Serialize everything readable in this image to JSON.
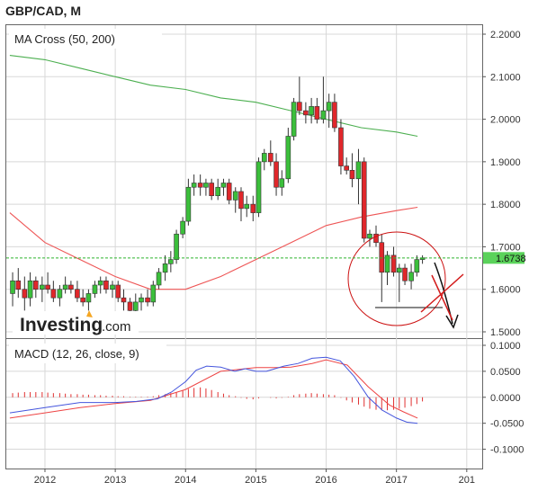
{
  "header": {
    "title": "GBP/CAD, M"
  },
  "logo": {
    "brand": "Investing",
    "suffix": ".com"
  },
  "colors": {
    "up": "#3bbf3b",
    "down": "#e0272b",
    "ma50": "#ee5555",
    "ma200": "#4caf50",
    "price_line": "#2db52d",
    "price_tag_bg": "#5ad25a",
    "macd": "#4455dd",
    "signal": "#ee4444",
    "hist": "#e03030",
    "annotation": "#cc1111",
    "grid": "#d8d8d8",
    "axis": "#555555"
  },
  "chart_data": [
    {
      "type": "candlestick",
      "panel": "main",
      "indicator_label": "MA Cross (50, 200)",
      "x_ticks": [
        "2012",
        "2013",
        "2014",
        "2015",
        "2016",
        "2017",
        "201"
      ],
      "y_ticks": [
        "2.2000",
        "2.1000",
        "2.0000",
        "1.9000",
        "1.8000",
        "1.7000",
        "1.6000",
        "1.5000"
      ],
      "ylim": [
        1.5,
        2.2
      ],
      "current_price": "1.6738",
      "ohlc": [
        [
          2011.54,
          1.59,
          1.64,
          1.56,
          1.62
        ],
        [
          2011.62,
          1.62,
          1.65,
          1.58,
          1.6
        ],
        [
          2011.71,
          1.6,
          1.63,
          1.55,
          1.58
        ],
        [
          2011.79,
          1.58,
          1.64,
          1.56,
          1.62
        ],
        [
          2011.87,
          1.62,
          1.63,
          1.58,
          1.6
        ],
        [
          2011.96,
          1.6,
          1.63,
          1.57,
          1.61
        ],
        [
          2012.04,
          1.61,
          1.64,
          1.59,
          1.6
        ],
        [
          2012.12,
          1.6,
          1.62,
          1.57,
          1.58
        ],
        [
          2012.21,
          1.58,
          1.61,
          1.56,
          1.6
        ],
        [
          2012.29,
          1.6,
          1.63,
          1.59,
          1.61
        ],
        [
          2012.37,
          1.61,
          1.62,
          1.59,
          1.6
        ],
        [
          2012.46,
          1.6,
          1.62,
          1.57,
          1.58
        ],
        [
          2012.54,
          1.58,
          1.6,
          1.56,
          1.57
        ],
        [
          2012.62,
          1.57,
          1.6,
          1.55,
          1.59
        ],
        [
          2012.71,
          1.59,
          1.62,
          1.58,
          1.61
        ],
        [
          2012.79,
          1.61,
          1.63,
          1.59,
          1.62
        ],
        [
          2012.87,
          1.62,
          1.63,
          1.59,
          1.6
        ],
        [
          2012.96,
          1.6,
          1.62,
          1.58,
          1.61
        ],
        [
          2013.04,
          1.61,
          1.62,
          1.57,
          1.58
        ],
        [
          2013.12,
          1.58,
          1.6,
          1.55,
          1.57
        ],
        [
          2013.21,
          1.57,
          1.58,
          1.53,
          1.55
        ],
        [
          2013.29,
          1.55,
          1.59,
          1.53,
          1.57
        ],
        [
          2013.37,
          1.57,
          1.59,
          1.55,
          1.58
        ],
        [
          2013.46,
          1.58,
          1.6,
          1.56,
          1.57
        ],
        [
          2013.54,
          1.57,
          1.62,
          1.56,
          1.61
        ],
        [
          2013.62,
          1.61,
          1.65,
          1.6,
          1.64
        ],
        [
          2013.71,
          1.64,
          1.68,
          1.62,
          1.66
        ],
        [
          2013.79,
          1.66,
          1.69,
          1.64,
          1.67
        ],
        [
          2013.87,
          1.67,
          1.74,
          1.66,
          1.73
        ],
        [
          2013.96,
          1.73,
          1.77,
          1.72,
          1.76
        ],
        [
          2014.04,
          1.76,
          1.86,
          1.75,
          1.84
        ],
        [
          2014.12,
          1.84,
          1.87,
          1.82,
          1.85
        ],
        [
          2014.21,
          1.85,
          1.87,
          1.82,
          1.84
        ],
        [
          2014.29,
          1.84,
          1.86,
          1.82,
          1.85
        ],
        [
          2014.37,
          1.85,
          1.86,
          1.81,
          1.82
        ],
        [
          2014.46,
          1.82,
          1.86,
          1.81,
          1.84
        ],
        [
          2014.54,
          1.84,
          1.86,
          1.82,
          1.85
        ],
        [
          2014.62,
          1.85,
          1.86,
          1.8,
          1.81
        ],
        [
          2014.71,
          1.81,
          1.84,
          1.78,
          1.83
        ],
        [
          2014.79,
          1.83,
          1.84,
          1.76,
          1.79
        ],
        [
          2014.87,
          1.79,
          1.82,
          1.77,
          1.8
        ],
        [
          2014.96,
          1.8,
          1.82,
          1.76,
          1.78
        ],
        [
          2015.04,
          1.78,
          1.91,
          1.77,
          1.9
        ],
        [
          2015.12,
          1.9,
          1.93,
          1.88,
          1.92
        ],
        [
          2015.21,
          1.92,
          1.95,
          1.89,
          1.9
        ],
        [
          2015.29,
          1.9,
          1.92,
          1.82,
          1.84
        ],
        [
          2015.37,
          1.84,
          1.88,
          1.82,
          1.86
        ],
        [
          2015.46,
          1.86,
          1.98,
          1.85,
          1.96
        ],
        [
          2015.54,
          1.96,
          2.05,
          1.95,
          2.04
        ],
        [
          2015.62,
          2.04,
          2.1,
          2.01,
          2.02
        ],
        [
          2015.71,
          2.02,
          2.04,
          1.99,
          2.01
        ],
        [
          2015.79,
          2.01,
          2.05,
          1.99,
          2.03
        ],
        [
          2015.87,
          2.03,
          2.05,
          1.99,
          2.0
        ],
        [
          2015.96,
          2.0,
          2.1,
          1.99,
          2.02
        ],
        [
          2016.04,
          2.02,
          2.06,
          1.98,
          2.04
        ],
        [
          2016.12,
          2.04,
          2.06,
          1.97,
          1.98
        ],
        [
          2016.21,
          1.98,
          2.0,
          1.87,
          1.89
        ],
        [
          2016.29,
          1.89,
          1.91,
          1.87,
          1.88
        ],
        [
          2016.37,
          1.88,
          1.92,
          1.84,
          1.86
        ],
        [
          2016.46,
          1.86,
          1.93,
          1.8,
          1.9
        ],
        [
          2016.54,
          1.9,
          1.91,
          1.71,
          1.72
        ],
        [
          2016.62,
          1.72,
          1.74,
          1.7,
          1.73
        ],
        [
          2016.71,
          1.73,
          1.75,
          1.7,
          1.71
        ],
        [
          2016.79,
          1.71,
          1.73,
          1.57,
          1.64
        ],
        [
          2016.87,
          1.64,
          1.69,
          1.61,
          1.68
        ],
        [
          2016.96,
          1.68,
          1.7,
          1.63,
          1.64
        ],
        [
          2017.04,
          1.64,
          1.66,
          1.57,
          1.65
        ],
        [
          2017.12,
          1.65,
          1.66,
          1.61,
          1.62
        ],
        [
          2017.21,
          1.62,
          1.66,
          1.6,
          1.64
        ],
        [
          2017.29,
          1.64,
          1.68,
          1.63,
          1.67
        ],
        [
          2017.37,
          1.67,
          1.68,
          1.66,
          1.674
        ]
      ],
      "ma50": [
        [
          2011.5,
          1.78
        ],
        [
          2012.0,
          1.71
        ],
        [
          2012.5,
          1.67
        ],
        [
          2013.0,
          1.63
        ],
        [
          2013.5,
          1.6
        ],
        [
          2014.0,
          1.6
        ],
        [
          2014.5,
          1.63
        ],
        [
          2015.0,
          1.67
        ],
        [
          2015.5,
          1.71
        ],
        [
          2016.0,
          1.75
        ],
        [
          2016.5,
          1.77
        ],
        [
          2017.0,
          1.785
        ],
        [
          2017.3,
          1.793
        ]
      ],
      "ma200": [
        [
          2011.5,
          2.15
        ],
        [
          2012.0,
          2.14
        ],
        [
          2012.5,
          2.12
        ],
        [
          2013.0,
          2.1
        ],
        [
          2013.5,
          2.08
        ],
        [
          2014.0,
          2.07
        ],
        [
          2014.5,
          2.05
        ],
        [
          2015.0,
          2.04
        ],
        [
          2015.5,
          2.02
        ],
        [
          2016.0,
          2.0
        ],
        [
          2016.5,
          1.98
        ],
        [
          2017.0,
          1.97
        ],
        [
          2017.3,
          1.96
        ]
      ]
    },
    {
      "type": "line",
      "panel": "macd",
      "indicator_label": "MACD (12, 26, close, 9)",
      "y_ticks": [
        "0.1000",
        "0.0500",
        "0.0000",
        "-0.0500",
        "-0.1000"
      ],
      "ylim": [
        -0.125,
        0.1
      ],
      "series": [
        {
          "name": "MACD",
          "points": [
            [
              2011.5,
              -0.03
            ],
            [
              2012.0,
              -0.02
            ],
            [
              2012.5,
              -0.01
            ],
            [
              2013.0,
              -0.01
            ],
            [
              2013.3,
              -0.008
            ],
            [
              2013.6,
              -0.003
            ],
            [
              2013.8,
              0.01
            ],
            [
              2014.0,
              0.03
            ],
            [
              2014.15,
              0.052
            ],
            [
              2014.3,
              0.06
            ],
            [
              2014.5,
              0.058
            ],
            [
              2014.7,
              0.05
            ],
            [
              2014.85,
              0.055
            ],
            [
              2015.0,
              0.05
            ],
            [
              2015.15,
              0.05
            ],
            [
              2015.4,
              0.06
            ],
            [
              2015.6,
              0.065
            ],
            [
              2015.8,
              0.075
            ],
            [
              2016.0,
              0.077
            ],
            [
              2016.2,
              0.07
            ],
            [
              2016.4,
              0.04
            ],
            [
              2016.6,
              0.0
            ],
            [
              2016.8,
              -0.025
            ],
            [
              2017.0,
              -0.04
            ],
            [
              2017.15,
              -0.048
            ],
            [
              2017.3,
              -0.05
            ]
          ]
        },
        {
          "name": "Signal",
          "points": [
            [
              2011.5,
              -0.04
            ],
            [
              2012.0,
              -0.03
            ],
            [
              2012.5,
              -0.02
            ],
            [
              2013.0,
              -0.012
            ],
            [
              2013.5,
              -0.006
            ],
            [
              2014.0,
              0.015
            ],
            [
              2014.5,
              0.05
            ],
            [
              2015.0,
              0.057
            ],
            [
              2015.3,
              0.057
            ],
            [
              2015.5,
              0.058
            ],
            [
              2015.8,
              0.065
            ],
            [
              2016.0,
              0.072
            ],
            [
              2016.3,
              0.062
            ],
            [
              2016.6,
              0.02
            ],
            [
              2016.9,
              -0.015
            ],
            [
              2017.1,
              -0.028
            ],
            [
              2017.3,
              -0.04
            ]
          ]
        }
      ],
      "histogram": [
        [
          2011.54,
          0.008
        ],
        [
          2011.62,
          0.009
        ],
        [
          2011.71,
          0.01
        ],
        [
          2011.79,
          0.01
        ],
        [
          2011.87,
          0.01
        ],
        [
          2011.96,
          0.01
        ],
        [
          2012.04,
          0.009
        ],
        [
          2012.12,
          0.008
        ],
        [
          2012.21,
          0.008
        ],
        [
          2012.29,
          0.007
        ],
        [
          2012.37,
          0.006
        ],
        [
          2012.46,
          0.006
        ],
        [
          2012.54,
          0.005
        ],
        [
          2012.62,
          0.005
        ],
        [
          2012.71,
          0.004
        ],
        [
          2012.79,
          0.004
        ],
        [
          2012.87,
          0.003
        ],
        [
          2012.96,
          0.003
        ],
        [
          2013.04,
          0.002
        ],
        [
          2013.12,
          0.002
        ],
        [
          2013.21,
          0.001
        ],
        [
          2013.29,
          0.001
        ],
        [
          2013.37,
          0.001
        ],
        [
          2013.46,
          0.001
        ],
        [
          2013.54,
          0.002
        ],
        [
          2013.62,
          0.004
        ],
        [
          2013.71,
          0.006
        ],
        [
          2013.79,
          0.008
        ],
        [
          2013.87,
          0.01
        ],
        [
          2013.96,
          0.013
        ],
        [
          2014.04,
          0.016
        ],
        [
          2014.12,
          0.018
        ],
        [
          2014.21,
          0.019
        ],
        [
          2014.29,
          0.017
        ],
        [
          2014.37,
          0.014
        ],
        [
          2014.46,
          0.01
        ],
        [
          2014.54,
          0.007
        ],
        [
          2014.62,
          0.004
        ],
        [
          2014.71,
          0.002
        ],
        [
          2014.79,
          -0.001
        ],
        [
          2014.87,
          -0.003
        ],
        [
          2014.96,
          -0.004
        ],
        [
          2015.04,
          -0.002
        ],
        [
          2015.12,
          0.0
        ],
        [
          2015.21,
          -0.001
        ],
        [
          2015.29,
          -0.002
        ],
        [
          2015.37,
          -0.001
        ],
        [
          2015.46,
          0.001
        ],
        [
          2015.54,
          0.004
        ],
        [
          2015.62,
          0.006
        ],
        [
          2015.71,
          0.007
        ],
        [
          2015.79,
          0.008
        ],
        [
          2015.87,
          0.007
        ],
        [
          2015.96,
          0.006
        ],
        [
          2016.04,
          0.005
        ],
        [
          2016.12,
          0.004
        ],
        [
          2016.21,
          -0.001
        ],
        [
          2016.29,
          -0.006
        ],
        [
          2016.37,
          -0.01
        ],
        [
          2016.46,
          -0.014
        ],
        [
          2016.54,
          -0.018
        ],
        [
          2016.62,
          -0.022
        ],
        [
          2016.71,
          -0.024
        ],
        [
          2016.79,
          -0.025
        ],
        [
          2016.87,
          -0.025
        ],
        [
          2016.96,
          -0.024
        ],
        [
          2017.04,
          -0.022
        ],
        [
          2017.12,
          -0.02
        ],
        [
          2017.21,
          -0.017
        ],
        [
          2017.29,
          -0.013
        ],
        [
          2017.37,
          -0.008
        ]
      ],
      "annotation": "hand-drawn red circle around the latest candles with a black downward arrow and a red X"
    }
  ]
}
